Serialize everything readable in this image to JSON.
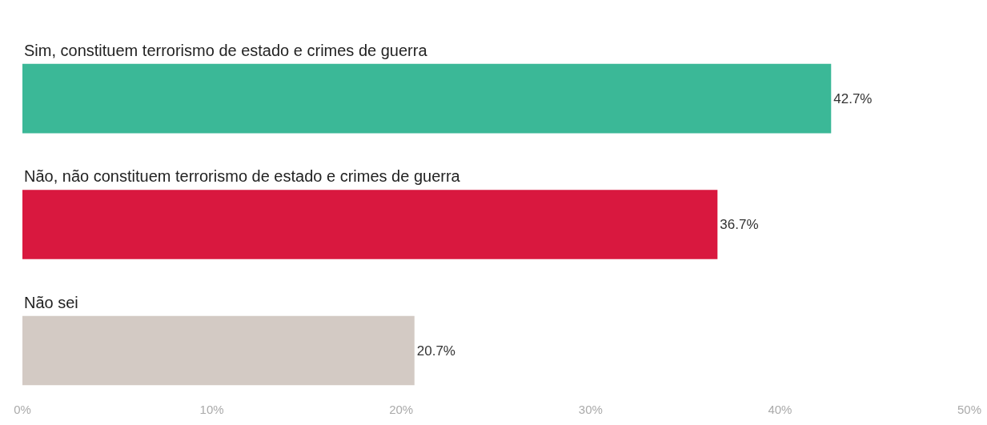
{
  "chart_data": {
    "type": "bar",
    "orientation": "horizontal",
    "categories": [
      "Sim, constituem terrorismo de estado e crimes de guerra",
      "Não, não constituem terrorismo de estado e crimes de guerra",
      "Não sei"
    ],
    "values": [
      42.7,
      36.7,
      20.7
    ],
    "colors": [
      "#3bb897",
      "#d9183f",
      "#d3cac4"
    ],
    "value_labels": [
      "42.7%",
      "36.7%",
      "20.7%"
    ],
    "xlim": [
      0,
      50
    ],
    "xticks": [
      {
        "value": 0,
        "label": "0%"
      },
      {
        "value": 10,
        "label": "10%"
      },
      {
        "value": 20,
        "label": "20%"
      },
      {
        "value": 30,
        "label": "30%"
      },
      {
        "value": 40,
        "label": "40%"
      },
      {
        "value": 50,
        "label": "50%"
      }
    ],
    "legend": false
  }
}
